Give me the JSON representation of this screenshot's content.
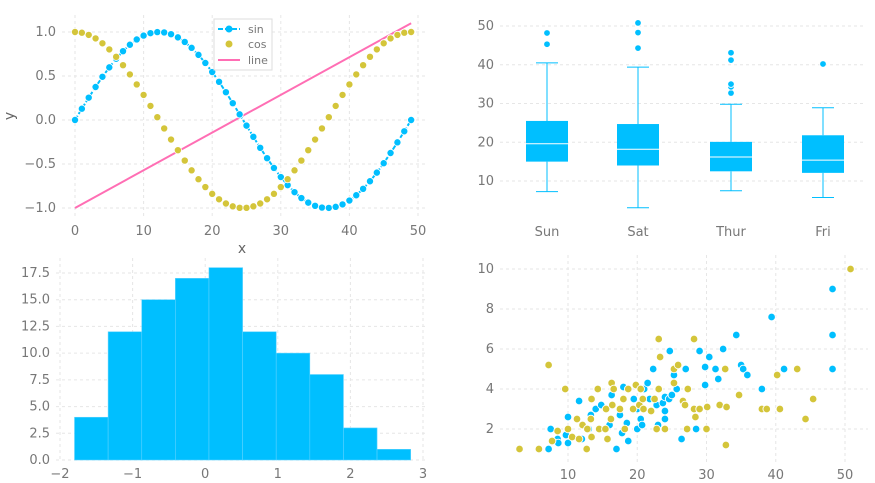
{
  "colors": {
    "blue": "#00BFFF",
    "yellow": "#D4C53A",
    "pink": "#FF6EB4",
    "grid": "#e6e6e6",
    "text": "#777777"
  },
  "chart_data": [
    {
      "type": "line",
      "xlabel": "x",
      "ylabel": "y",
      "xlim": [
        -2,
        51
      ],
      "ylim": [
        -1.1,
        1.2
      ],
      "xticks": [
        0,
        10,
        20,
        30,
        40,
        50
      ],
      "yticks": [
        -1.0,
        -0.5,
        0.0,
        0.5,
        1.0
      ],
      "ytick_labels": [
        "−1.0",
        "−0.5",
        "0.0",
        "0.5",
        "1.0"
      ],
      "grid": true,
      "legend": "top-center",
      "series": [
        {
          "name": "sin",
          "style": "line+markers",
          "color": "#00BFFF",
          "y": [
            0,
            0.128,
            0.254,
            0.375,
            0.491,
            0.598,
            0.696,
            0.782,
            0.855,
            0.915,
            0.959,
            0.987,
            0.999,
            0.995,
            0.975,
            0.939,
            0.887,
            0.82,
            0.74,
            0.648,
            0.545,
            0.434,
            0.316,
            0.191,
            0.064,
            -0.064,
            -0.191,
            -0.316,
            -0.434,
            -0.545,
            -0.648,
            -0.74,
            -0.82,
            -0.887,
            -0.939,
            -0.975,
            -0.995,
            -0.999,
            -0.987,
            -0.959,
            -0.915,
            -0.855,
            -0.782,
            -0.696,
            -0.598,
            -0.491,
            -0.375,
            -0.254,
            -0.128,
            0
          ]
        },
        {
          "name": "cos",
          "style": "markers",
          "color": "#D4C53A",
          "y": [
            1,
            0.992,
            0.967,
            0.927,
            0.872,
            0.802,
            0.718,
            0.623,
            0.518,
            0.404,
            0.285,
            0.16,
            0.032,
            -0.096,
            -0.222,
            -0.343,
            -0.461,
            -0.572,
            -0.673,
            -0.762,
            -0.839,
            -0.901,
            -0.949,
            -0.981,
            -0.998,
            -0.998,
            -0.981,
            -0.949,
            -0.901,
            -0.839,
            -0.762,
            -0.673,
            -0.572,
            -0.461,
            -0.343,
            -0.222,
            -0.096,
            0.032,
            0.16,
            0.285,
            0.404,
            0.518,
            0.623,
            0.718,
            0.802,
            0.872,
            0.927,
            0.967,
            0.992,
            1
          ]
        },
        {
          "name": "line",
          "style": "line",
          "color": "#FF6EB4",
          "x": [
            0,
            49
          ],
          "y": [
            -1,
            1.1
          ]
        }
      ]
    },
    {
      "type": "box",
      "categories": [
        "Sun",
        "Sat",
        "Thur",
        "Fri"
      ],
      "ylim": [
        1,
        53
      ],
      "yticks": [
        10,
        20,
        30,
        40,
        50
      ],
      "grid": true,
      "color": "#00BFFF",
      "boxes": [
        {
          "whislo": 7.25,
          "q1": 15,
          "med": 19.6,
          "q3": 25.5,
          "whishi": 40.5,
          "fliers": [
            45.3,
            48.2
          ]
        },
        {
          "whislo": 3.1,
          "q1": 14,
          "med": 18.2,
          "q3": 24.7,
          "whishi": 39.4,
          "fliers": [
            44.3,
            48.3,
            50.8
          ]
        },
        {
          "whislo": 7.5,
          "q1": 12.5,
          "med": 16.2,
          "q3": 20.1,
          "whishi": 29.8,
          "fliers": [
            32.7,
            34.3,
            35,
            41.2,
            43.1
          ]
        },
        {
          "whislo": 5.75,
          "q1": 12.1,
          "med": 15.4,
          "q3": 21.8,
          "whishi": 28.9,
          "fliers": [
            40.2
          ]
        }
      ]
    },
    {
      "type": "bar",
      "subtype": "histogram",
      "xlim": [
        -2,
        3
      ],
      "ylim": [
        0,
        18.8
      ],
      "xticks": [
        -2,
        -1,
        0,
        1,
        2,
        3
      ],
      "xtick_labels": [
        "−2",
        "−1",
        "0",
        "1",
        "2",
        "3"
      ],
      "yticks": [
        0,
        2.5,
        5,
        7.5,
        10,
        12.5,
        15,
        17.5
      ],
      "ytick_labels": [
        "0.0",
        "2.5",
        "5.0",
        "7.5",
        "10.0",
        "12.5",
        "15.0",
        "17.5"
      ],
      "grid": true,
      "color": "#00BFFF",
      "bin_edges": [
        -1.8,
        -1.337,
        -0.874,
        -0.411,
        0.052,
        0.515,
        0.978,
        1.441,
        1.904,
        2.367,
        2.83
      ],
      "counts": [
        4,
        12,
        15,
        17,
        18,
        12,
        10,
        8,
        3,
        1
      ]
    },
    {
      "type": "scatter",
      "xlim": [
        1,
        53
      ],
      "ylim": [
        0.5,
        10.5
      ],
      "xticks": [
        10,
        20,
        30,
        40,
        50
      ],
      "yticks": [
        2,
        4,
        6,
        8,
        10
      ],
      "grid": true,
      "series": [
        {
          "color": "#00BFFF",
          "points": [
            [
              7.5,
              2
            ],
            [
              7.2,
              1
            ],
            [
              8.5,
              1.5
            ],
            [
              8.6,
              1.3
            ],
            [
              9.7,
              1.7
            ],
            [
              10,
              1.3
            ],
            [
              10,
              2.6
            ],
            [
              11.6,
              3.4
            ],
            [
              12,
              1.5
            ],
            [
              13,
              2
            ],
            [
              13.3,
              2.7
            ],
            [
              14,
              3
            ],
            [
              14.8,
              3.2
            ],
            [
              15.5,
              2
            ],
            [
              16,
              2.2
            ],
            [
              16.3,
              3.7
            ],
            [
              17,
              1
            ],
            [
              17.5,
              2.7
            ],
            [
              17.8,
              1.8
            ],
            [
              18,
              4.1
            ],
            [
              18.5,
              2.3
            ],
            [
              18.7,
              1.4
            ],
            [
              19.5,
              3.5
            ],
            [
              20,
              2
            ],
            [
              20,
              3
            ],
            [
              20.5,
              2.5
            ],
            [
              20.7,
              2.2
            ],
            [
              21,
              4
            ],
            [
              21.5,
              4.3
            ],
            [
              21.8,
              3.5
            ],
            [
              22.3,
              5
            ],
            [
              22.8,
              3.2
            ],
            [
              23,
              2.2
            ],
            [
              23.7,
              3.3
            ],
            [
              24,
              3.6
            ],
            [
              24,
              2.9
            ],
            [
              24,
              2.5
            ],
            [
              24.6,
              3.5
            ],
            [
              24.7,
              5.9
            ],
            [
              25,
              3.7
            ],
            [
              25.3,
              4.7
            ],
            [
              25.7,
              4
            ],
            [
              26.4,
              1.5
            ],
            [
              27,
              5
            ],
            [
              28.5,
              2
            ],
            [
              29,
              5.9
            ],
            [
              29.8,
              4.2
            ],
            [
              29.8,
              5.1
            ],
            [
              30.4,
              5.6
            ],
            [
              31.3,
              5
            ],
            [
              31.7,
              4.5
            ],
            [
              32.4,
              6
            ],
            [
              34.3,
              6.7
            ],
            [
              35,
              5.2
            ],
            [
              35.3,
              5
            ],
            [
              35.9,
              4.7
            ],
            [
              38,
              4
            ],
            [
              39.4,
              7.6
            ],
            [
              41.2,
              5
            ],
            [
              48.2,
              9
            ],
            [
              48.2,
              6.7
            ],
            [
              48.2,
              5
            ]
          ]
        },
        {
          "color": "#D4C53A",
          "points": [
            [
              3,
              1
            ],
            [
              5.8,
              1
            ],
            [
              7.2,
              5.2
            ],
            [
              7.7,
              1.4
            ],
            [
              8.5,
              1.9
            ],
            [
              9.6,
              4
            ],
            [
              10,
              2
            ],
            [
              10.6,
              1.6
            ],
            [
              11.3,
              2.5
            ],
            [
              11.6,
              1.5
            ],
            [
              12.1,
              2.2
            ],
            [
              12.7,
              1
            ],
            [
              12.8,
              2
            ],
            [
              13.3,
              2.5
            ],
            [
              13.4,
              3.5
            ],
            [
              13.4,
              1.6
            ],
            [
              14.3,
              4
            ],
            [
              14.5,
              2
            ],
            [
              15.4,
              2
            ],
            [
              15.5,
              3
            ],
            [
              15.7,
              1.5
            ],
            [
              16.2,
              2.5
            ],
            [
              16.3,
              4.3
            ],
            [
              16.4,
              3.2
            ],
            [
              16.6,
              4
            ],
            [
              17.5,
              3
            ],
            [
              18,
              3.5
            ],
            [
              18.2,
              2
            ],
            [
              18.7,
              4
            ],
            [
              19.4,
              3
            ],
            [
              19.8,
              4.2
            ],
            [
              20.3,
              3.2
            ],
            [
              20.5,
              4
            ],
            [
              20.8,
              3.5
            ],
            [
              20.9,
              3
            ],
            [
              22,
              2.9
            ],
            [
              22.5,
              3.5
            ],
            [
              22.8,
              2
            ],
            [
              23.1,
              4
            ],
            [
              23.1,
              6.5
            ],
            [
              23.3,
              5.6
            ],
            [
              24,
              2
            ],
            [
              25.3,
              4.3
            ],
            [
              25.3,
              5
            ],
            [
              25.9,
              5.2
            ],
            [
              26.6,
              3.4
            ],
            [
              26.9,
              3.2
            ],
            [
              27.2,
              2
            ],
            [
              27.3,
              4
            ],
            [
              28.2,
              6.5
            ],
            [
              28.2,
              3
            ],
            [
              28.4,
              2.6
            ],
            [
              29,
              3
            ],
            [
              30,
              2
            ],
            [
              30.1,
              3.1
            ],
            [
              31.9,
              3.2
            ],
            [
              32.7,
              5
            ],
            [
              32.8,
              1.2
            ],
            [
              32.9,
              3.1
            ],
            [
              34.7,
              3.7
            ],
            [
              38,
              3
            ],
            [
              38.7,
              3
            ],
            [
              40.2,
              4.7
            ],
            [
              40.6,
              3
            ],
            [
              43.1,
              5
            ],
            [
              44.3,
              2.5
            ],
            [
              45.4,
              3.5
            ],
            [
              50.8,
              10
            ]
          ]
        }
      ]
    }
  ]
}
